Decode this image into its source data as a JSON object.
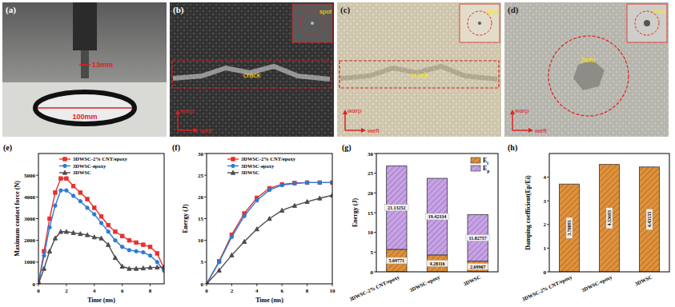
{
  "photos": [
    {
      "label": "(a)",
      "annotations": [
        "13mm",
        "100mm"
      ]
    },
    {
      "label": "(b)",
      "inset": "spot",
      "damage": "crack",
      "axes": [
        "warp",
        "weft"
      ]
    },
    {
      "label": "(c)",
      "inset": "spot",
      "damage": "crack",
      "axes": [
        "warp",
        "weft"
      ]
    },
    {
      "label": "(d)",
      "inset": "hole",
      "damage": "hole",
      "axes": [
        "warp",
        "weft"
      ]
    }
  ],
  "chart_data": [
    {
      "type": "line",
      "title": "(e)",
      "x_label": "Time (ms)",
      "y_label": "Maximum contact force (N)",
      "x": [
        0,
        0.4,
        0.8,
        1.2,
        1.6,
        2.0,
        2.5,
        3,
        3.5,
        4,
        4.5,
        5,
        5.5,
        6,
        6.5,
        7,
        7.5,
        8,
        8.5,
        9
      ],
      "xlim": [
        0,
        9
      ],
      "xticks": [
        0,
        2,
        4,
        6,
        8
      ],
      "ylim": [
        0,
        6000
      ],
      "yticks": [
        0,
        1000,
        2000,
        3000,
        4000,
        5000
      ],
      "legend": "upper left",
      "series": [
        {
          "name": "3DWSC-2% CNT/epoxy",
          "color": "#e6322d",
          "marker": "square",
          "values": [
            0,
            1500,
            3000,
            4200,
            4850,
            4850,
            4500,
            4200,
            3900,
            3500,
            3100,
            2700,
            2400,
            2200,
            2000,
            1900,
            1800,
            1700,
            1400,
            700
          ]
        },
        {
          "name": "3DWSC-epoxy",
          "color": "#2c7bd6",
          "marker": "circle",
          "values": [
            0,
            1300,
            2600,
            3600,
            4300,
            4300,
            4050,
            3800,
            3500,
            3200,
            2800,
            2400,
            2000,
            1700,
            1550,
            1500,
            1450,
            1300,
            1000,
            600
          ]
        },
        {
          "name": "3DWSC",
          "color": "#4d4d4d",
          "marker": "triangle",
          "values": [
            0,
            700,
            1500,
            2100,
            2400,
            2400,
            2350,
            2300,
            2250,
            2150,
            2100,
            1800,
            1200,
            800,
            700,
            700,
            720,
            750,
            760,
            760
          ]
        }
      ]
    },
    {
      "type": "line",
      "title": "(f)",
      "x_label": "Time (ms)",
      "y_label": "Energy (J)",
      "x": [
        0,
        1,
        2,
        3,
        4,
        5,
        6,
        7,
        8,
        9,
        10
      ],
      "xlim": [
        0,
        10
      ],
      "xticks": [
        0,
        2,
        4,
        6,
        8,
        10
      ],
      "ylim": [
        0,
        30
      ],
      "yticks": [
        0,
        5,
        10,
        15,
        20,
        25,
        30
      ],
      "legend": "upper left",
      "series": [
        {
          "name": "3DWSC-2% CNT/epoxy",
          "color": "#e6322d",
          "marker": "square",
          "values": [
            0,
            5.2,
            11.3,
            16.2,
            19.8,
            22.0,
            22.9,
            23.2,
            23.3,
            23.3,
            23.3
          ]
        },
        {
          "name": "3DWSC-epoxy",
          "color": "#2c7bd6",
          "marker": "circle",
          "values": [
            0,
            5.0,
            10.8,
            15.6,
            19.2,
            21.6,
            22.7,
            23.1,
            23.3,
            23.3,
            23.3
          ]
        },
        {
          "name": "3DWSC",
          "color": "#4d4d4d",
          "marker": "triangle",
          "values": [
            0,
            3.1,
            6.6,
            9.7,
            12.6,
            15.0,
            16.9,
            18.0,
            18.9,
            19.7,
            20.4
          ]
        }
      ]
    },
    {
      "type": "bar",
      "stacked": true,
      "title": "(g)",
      "y_label": "Energy (J)",
      "categories": [
        "3DWSC-2% CNT/epoxy",
        "3DWSC-epoxy",
        "3DWSC"
      ],
      "ylim": [
        0,
        30
      ],
      "yticks": [
        0,
        5,
        10,
        15,
        20,
        25,
        30
      ],
      "legend": "upper right",
      "data_labels": true,
      "series": [
        {
          "name": "Ei",
          "color": "#e0913a",
          "values": [
            5.69771,
            4.28116,
            2.69907
          ]
        },
        {
          "name": "Ep",
          "color": "#c8a2e8",
          "values": [
            21.13252,
            19.42334,
            11.82757
          ]
        }
      ]
    },
    {
      "type": "bar",
      "title": "(h)",
      "y_label": "Damping coefficient(Ep/Ei)",
      "categories": [
        "3DWSC-2% CNT/epoxy",
        "3DWSC-epoxy",
        "3DWSC"
      ],
      "values": [
        3.70895,
        4.53693,
        4.43135
      ],
      "color": "#e0913a",
      "ylim": [
        0,
        5
      ],
      "yticks": [
        0,
        1,
        2,
        3,
        4
      ],
      "data_labels": true
    }
  ]
}
